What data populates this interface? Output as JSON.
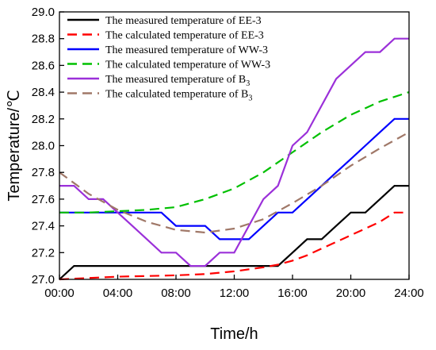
{
  "chart_data": {
    "type": "line",
    "xlabel": "Time/h",
    "ylabel": "Temperature/℃",
    "xlim": [
      0,
      24
    ],
    "ylim": [
      27.0,
      29.0
    ],
    "x_ticks": [
      {
        "value": 0,
        "label": "00:00"
      },
      {
        "value": 4,
        "label": "04:00"
      },
      {
        "value": 8,
        "label": "08:00"
      },
      {
        "value": 12,
        "label": "12:00"
      },
      {
        "value": 16,
        "label": "16:00"
      },
      {
        "value": 20,
        "label": "20:00"
      },
      {
        "value": 24,
        "label": "24:00"
      }
    ],
    "y_ticks": [
      {
        "value": 27.0,
        "label": "27.0"
      },
      {
        "value": 27.2,
        "label": "27.2"
      },
      {
        "value": 27.4,
        "label": "27.4"
      },
      {
        "value": 27.6,
        "label": "27.6"
      },
      {
        "value": 27.8,
        "label": "27.8"
      },
      {
        "value": 28.0,
        "label": "28.0"
      },
      {
        "value": 28.2,
        "label": "28.2"
      },
      {
        "value": 28.4,
        "label": "28.4"
      },
      {
        "value": 28.6,
        "label": "28.6"
      },
      {
        "value": 28.8,
        "label": "28.8"
      },
      {
        "value": 29.0,
        "label": "29.0"
      }
    ],
    "legend_position": "top-left",
    "grid": false,
    "series": [
      {
        "name": "The measured temperature of EE-3",
        "legend_main": "The measured temperature of EE-3",
        "legend_sub": "",
        "color": "#000000",
        "dash": "solid",
        "x": [
          0,
          1,
          2,
          3,
          4,
          5,
          6,
          7,
          8,
          9,
          10,
          11,
          12,
          13,
          14,
          15,
          16,
          17,
          18,
          19,
          20,
          21,
          22,
          23,
          24
        ],
        "y": [
          27.0,
          27.1,
          27.1,
          27.1,
          27.1,
          27.1,
          27.1,
          27.1,
          27.1,
          27.1,
          27.1,
          27.1,
          27.1,
          27.1,
          27.1,
          27.1,
          27.2,
          27.3,
          27.3,
          27.4,
          27.5,
          27.5,
          27.6,
          27.7,
          27.7
        ]
      },
      {
        "name": "The calculated temperature of EE-3",
        "legend_main": "The calculated temperature of EE-3",
        "legend_sub": "",
        "color": "#ff0000",
        "dash": "dashed",
        "x": [
          0,
          2,
          4,
          6,
          8,
          10,
          12,
          14,
          15,
          16,
          17,
          18,
          19,
          20,
          21,
          22,
          23,
          24
        ],
        "y": [
          27.0,
          27.01,
          27.02,
          27.025,
          27.03,
          27.04,
          27.06,
          27.09,
          27.11,
          27.14,
          27.18,
          27.23,
          27.28,
          27.33,
          27.38,
          27.43,
          27.5,
          27.5
        ]
      },
      {
        "name": "The measured temperature of WW-3",
        "legend_main": "The measured temperature of WW-3",
        "legend_sub": "",
        "color": "#0000ff",
        "dash": "solid",
        "x": [
          0,
          1,
          2,
          3,
          4,
          5,
          6,
          7,
          8,
          9,
          10,
          11,
          12,
          13,
          14,
          15,
          16,
          17,
          18,
          19,
          20,
          21,
          22,
          23,
          24
        ],
        "y": [
          27.5,
          27.5,
          27.5,
          27.5,
          27.5,
          27.5,
          27.5,
          27.5,
          27.4,
          27.4,
          27.4,
          27.3,
          27.3,
          27.3,
          27.4,
          27.5,
          27.5,
          27.6,
          27.7,
          27.8,
          27.9,
          28.0,
          28.1,
          28.2,
          28.2
        ]
      },
      {
        "name": "The calculated temperature of WW-3",
        "legend_main": "The calculated temperature of WW-3",
        "legend_sub": "",
        "color": "#00c000",
        "dash": "dashed",
        "x": [
          0,
          2,
          4,
          6,
          8,
          10,
          12,
          14,
          16,
          18,
          20,
          22,
          24
        ],
        "y": [
          27.5,
          27.5,
          27.51,
          27.52,
          27.54,
          27.6,
          27.68,
          27.8,
          27.95,
          28.1,
          28.23,
          28.33,
          28.4
        ]
      },
      {
        "name": "The measured temperature of B3",
        "legend_main": "The measured temperature of B",
        "legend_sub": "3",
        "color": "#9b30d9",
        "dash": "solid",
        "x": [
          0,
          1,
          2,
          3,
          4,
          5,
          6,
          7,
          8,
          9,
          10,
          11,
          12,
          13,
          14,
          15,
          16,
          17,
          18,
          19,
          20,
          21,
          22,
          23,
          24
        ],
        "y": [
          27.7,
          27.7,
          27.6,
          27.6,
          27.5,
          27.4,
          27.3,
          27.2,
          27.2,
          27.1,
          27.1,
          27.2,
          27.2,
          27.4,
          27.6,
          27.7,
          28.0,
          28.1,
          28.3,
          28.5,
          28.6,
          28.7,
          28.7,
          28.8,
          28.8
        ]
      },
      {
        "name": "The calculated temperature of B3",
        "legend_main": "The calculated temperature of B",
        "legend_sub": "3",
        "color": "#a07868",
        "dash": "dashed",
        "x": [
          0,
          2,
          4,
          6,
          8,
          10,
          12,
          14,
          16,
          18,
          20,
          22,
          24
        ],
        "y": [
          27.8,
          27.64,
          27.52,
          27.43,
          27.37,
          27.35,
          27.38,
          27.45,
          27.57,
          27.7,
          27.85,
          27.98,
          28.1
        ]
      }
    ]
  }
}
